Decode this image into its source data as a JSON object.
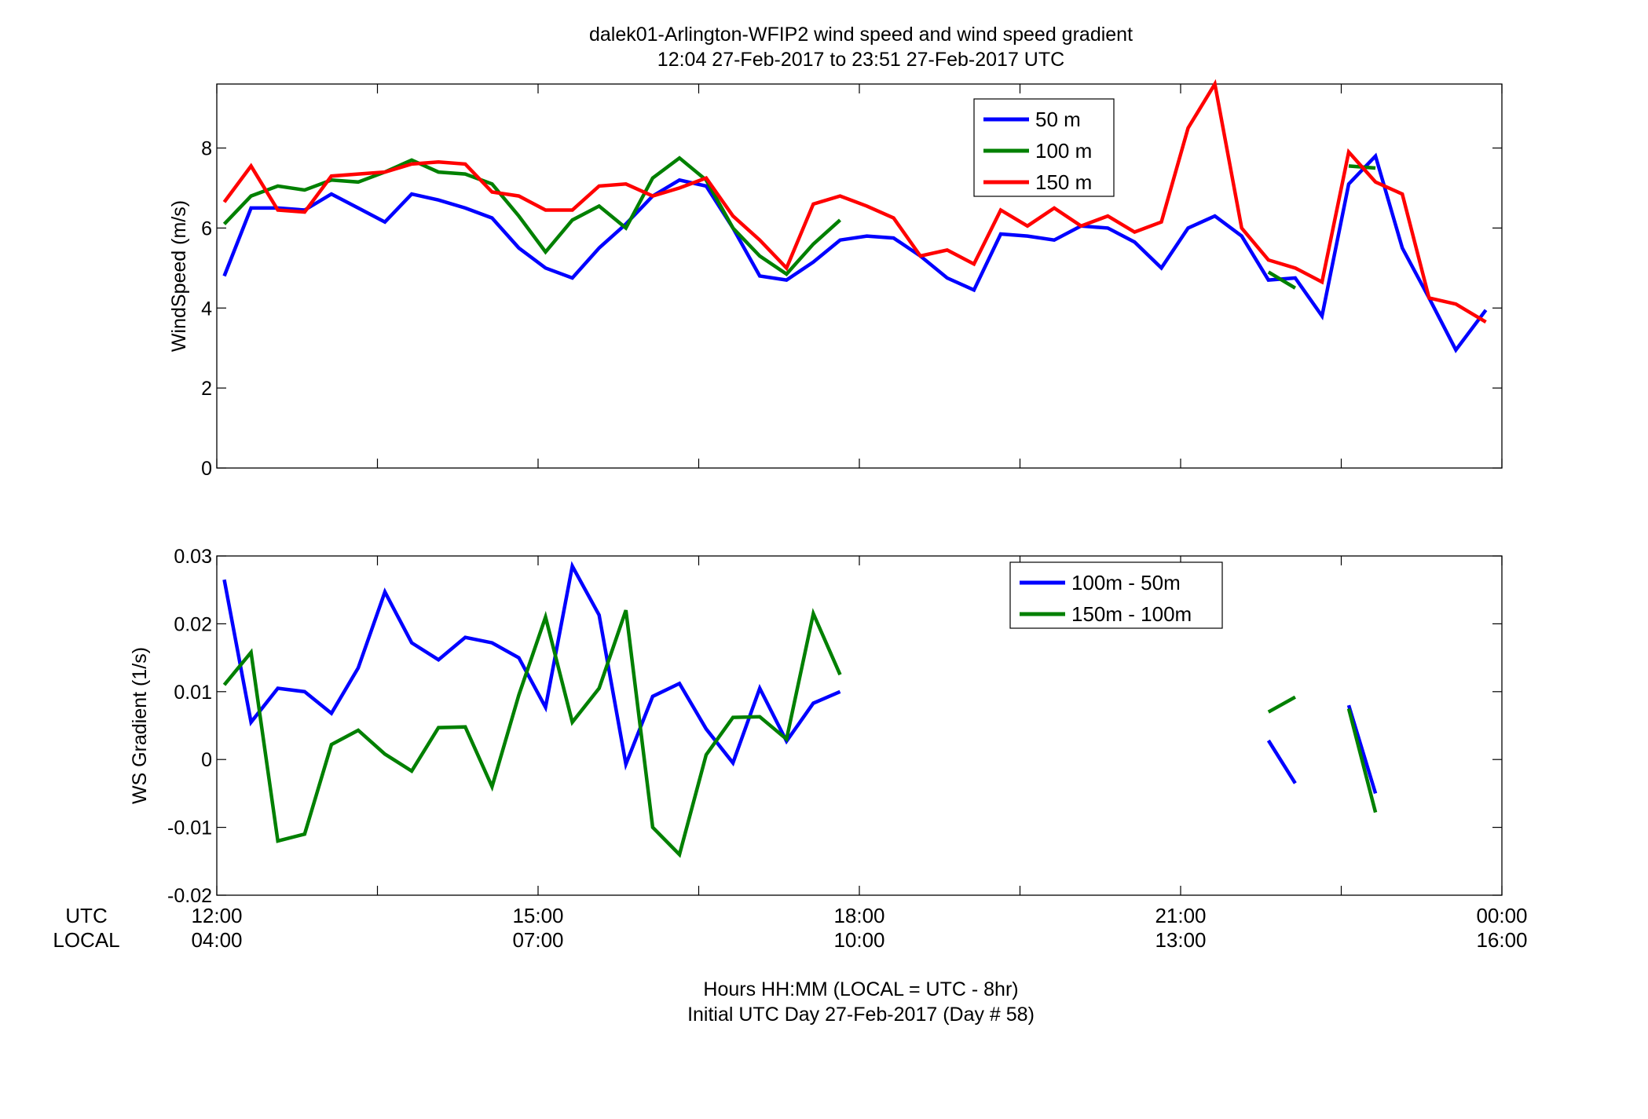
{
  "figure": {
    "title_line1": "dalek01-Arlington-WFIP2  wind speed and wind speed gradient",
    "title_line2": "12:04 27-Feb-2017 to 23:51 27-Feb-2017  UTC",
    "xlabel_line1": "Hours HH:MM  (LOCAL = UTC - 8hr)",
    "xlabel_line2": "Initial UTC Day 27-Feb-2017 (Day # 58)",
    "utc_row_label": "UTC",
    "local_row_label": "LOCAL",
    "utc_ticks": [
      "12:00",
      "15:00",
      "18:00",
      "21:00",
      "00:00"
    ],
    "local_ticks": [
      "04:00",
      "07:00",
      "10:00",
      "13:00",
      "16:00"
    ]
  },
  "chart_data": [
    {
      "type": "line",
      "title": "",
      "xlabel": "",
      "ylabel": "WindSpeed (m/s)",
      "xlim": [
        12,
        24
      ],
      "ylim": [
        0,
        9.6
      ],
      "yticks": [
        0,
        2,
        4,
        6,
        8
      ],
      "grid": false,
      "legend_position": "top-right",
      "x": [
        12.07,
        12.32,
        12.57,
        12.82,
        13.07,
        13.32,
        13.57,
        13.82,
        14.07,
        14.32,
        14.57,
        14.82,
        15.07,
        15.32,
        15.57,
        15.82,
        16.07,
        16.32,
        16.57,
        16.82,
        17.07,
        17.32,
        17.57,
        17.82,
        18.07,
        18.32,
        18.57,
        18.82,
        19.07,
        19.32,
        19.57,
        19.82,
        20.07,
        20.32,
        20.57,
        20.82,
        21.07,
        21.32,
        21.57,
        21.82,
        22.07,
        22.32,
        22.57,
        22.82,
        23.07,
        23.32,
        23.57,
        23.85
      ],
      "series": [
        {
          "name": "50 m",
          "color": "#0000ff",
          "values": [
            4.8,
            6.5,
            6.5,
            6.45,
            6.85,
            6.5,
            6.15,
            6.85,
            6.7,
            6.5,
            6.25,
            5.5,
            5.0,
            4.75,
            5.5,
            6.1,
            6.8,
            7.2,
            7.05,
            6.0,
            4.8,
            4.7,
            5.15,
            5.7,
            5.8,
            5.75,
            5.3,
            4.75,
            4.45,
            5.85,
            5.8,
            5.7,
            6.05,
            6.0,
            5.65,
            5.0,
            6.0,
            6.3,
            5.8,
            4.7,
            4.75,
            3.8,
            7.1,
            7.8,
            5.5,
            4.25,
            2.95,
            3.95
          ]
        },
        {
          "name": "100 m",
          "color": "#008000",
          "values": [
            6.1,
            6.8,
            7.05,
            6.95,
            7.2,
            7.15,
            7.4,
            7.7,
            7.4,
            7.35,
            7.1,
            6.3,
            5.4,
            6.2,
            6.55,
            6.0,
            7.25,
            7.75,
            7.2,
            6.0,
            5.3,
            4.85,
            5.6,
            6.2,
            null,
            null,
            null,
            null,
            null,
            null,
            null,
            null,
            null,
            null,
            null,
            null,
            null,
            null,
            null,
            4.9,
            4.5,
            null,
            7.55,
            7.5,
            null,
            null,
            null,
            null
          ]
        },
        {
          "name": "150 m",
          "color": "#ff0000",
          "values": [
            6.65,
            7.55,
            6.45,
            6.4,
            7.3,
            7.35,
            7.4,
            7.6,
            7.65,
            7.6,
            6.9,
            6.8,
            6.45,
            6.45,
            7.05,
            7.1,
            6.8,
            7.0,
            7.25,
            6.3,
            5.7,
            5.0,
            6.6,
            6.8,
            6.55,
            6.25,
            5.3,
            5.45,
            5.1,
            6.45,
            6.05,
            6.5,
            6.05,
            6.3,
            5.9,
            6.15,
            8.5,
            9.6,
            6.0,
            5.2,
            5.0,
            4.65,
            7.9,
            7.15,
            6.85,
            4.25,
            4.1,
            3.65
          ]
        }
      ]
    },
    {
      "type": "line",
      "title": "",
      "xlabel": "",
      "ylabel": "WS Gradient (1/s)",
      "xlim": [
        12,
        24
      ],
      "ylim": [
        -0.02,
        0.03
      ],
      "yticks": [
        -0.02,
        -0.01,
        0,
        0.01,
        0.02,
        0.03
      ],
      "grid": false,
      "legend_position": "top-right",
      "x": [
        12.07,
        12.32,
        12.57,
        12.82,
        13.07,
        13.32,
        13.57,
        13.82,
        14.07,
        14.32,
        14.57,
        14.82,
        15.07,
        15.32,
        15.57,
        15.82,
        16.07,
        16.32,
        16.57,
        16.82,
        17.07,
        17.32,
        17.57,
        17.82,
        18.07,
        18.32,
        18.57,
        18.82,
        19.07,
        19.32,
        19.57,
        19.82,
        20.07,
        20.32,
        20.57,
        20.82,
        21.07,
        21.32,
        21.57,
        21.82,
        22.07,
        22.32,
        22.57,
        22.82,
        23.07,
        23.32,
        23.57,
        23.85
      ],
      "series": [
        {
          "name": "100m - 50m",
          "color": "#0000ff",
          "values": [
            0.0265,
            0.0055,
            0.0105,
            0.01,
            0.0068,
            0.0135,
            0.0247,
            0.0172,
            0.0147,
            0.018,
            0.0172,
            0.015,
            0.0077,
            0.0285,
            0.0213,
            -0.0007,
            0.0093,
            0.0112,
            0.0045,
            -0.0005,
            0.0105,
            0.0027,
            0.0083,
            0.01,
            null,
            null,
            null,
            null,
            null,
            null,
            null,
            null,
            null,
            null,
            null,
            null,
            null,
            null,
            null,
            0.0028,
            -0.0035,
            null,
            0.008,
            -0.005,
            null,
            null,
            null,
            null
          ]
        },
        {
          "name": "150m - 100m",
          "color": "#008000",
          "values": [
            0.011,
            0.0158,
            -0.012,
            -0.011,
            0.0022,
            0.0043,
            0.0008,
            -0.0017,
            0.0047,
            0.0048,
            -0.004,
            0.0095,
            0.021,
            0.0055,
            0.0105,
            0.022,
            -0.01,
            -0.014,
            0.0007,
            0.0062,
            0.0063,
            0.003,
            0.0215,
            0.0125,
            null,
            null,
            null,
            null,
            null,
            null,
            null,
            null,
            null,
            null,
            null,
            null,
            null,
            null,
            null,
            0.007,
            0.0092,
            null,
            0.0075,
            -0.0078,
            null,
            null,
            null,
            null
          ]
        }
      ]
    }
  ]
}
